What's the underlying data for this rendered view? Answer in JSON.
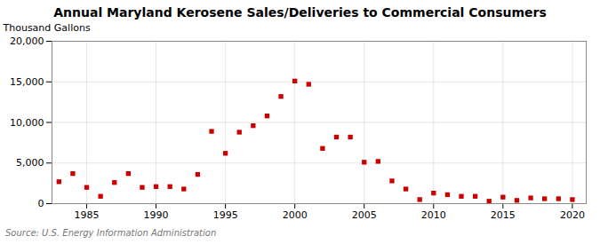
{
  "chart_data": {
    "type": "scatter",
    "title": "Annual Maryland Kerosene Sales/Deliveries to Commercial Consumers",
    "ylabel": "Thousand Gallons",
    "source": "Source: U.S. Energy Information Administration",
    "x": [
      1983,
      1984,
      1985,
      1986,
      1987,
      1988,
      1989,
      1990,
      1991,
      1992,
      1993,
      1994,
      1995,
      1996,
      1997,
      1998,
      1999,
      2000,
      2001,
      2002,
      2003,
      2004,
      2005,
      2006,
      2007,
      2008,
      2009,
      2010,
      2011,
      2012,
      2013,
      2014,
      2015,
      2016,
      2017,
      2018,
      2019,
      2020
    ],
    "values": [
      2700,
      3700,
      2000,
      900,
      2600,
      3700,
      2000,
      2100,
      2100,
      1800,
      3600,
      8900,
      6200,
      8800,
      9600,
      10800,
      13200,
      15100,
      14700,
      6800,
      8200,
      8200,
      5100,
      5200,
      2800,
      1800,
      500,
      1300,
      1100,
      900,
      900,
      300,
      800,
      400,
      700,
      600,
      600,
      500
    ],
    "color": "#cc0000",
    "marker": "square",
    "xlim": [
      1982.5,
      2021
    ],
    "xticks": [
      1985,
      1990,
      1995,
      2000,
      2005,
      2010,
      2015,
      2020
    ],
    "ylim": [
      0,
      20000
    ],
    "yticks": [
      0,
      {
        "value": 5000,
        "label": "5,000"
      },
      {
        "value": 10000,
        "label": "10,000"
      },
      {
        "value": 15000,
        "label": "15,000"
      },
      {
        "value": 20000,
        "label": "20,000"
      }
    ],
    "grid": true
  }
}
